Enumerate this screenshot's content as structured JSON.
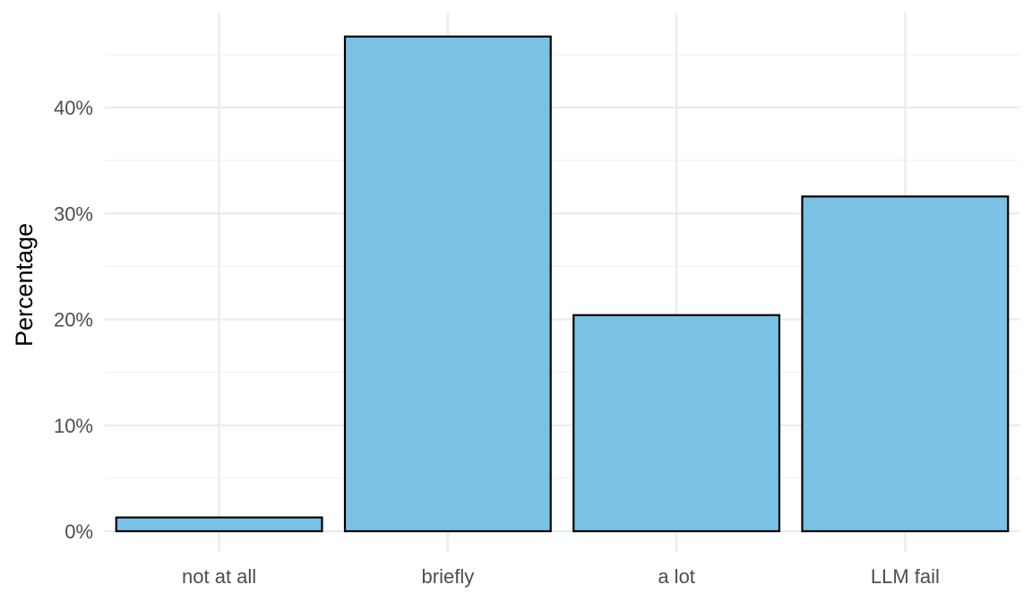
{
  "chart_data": {
    "type": "bar",
    "title": "",
    "xlabel": "",
    "ylabel": "Percentage",
    "categories": [
      "not at all",
      "briefly",
      "a lot",
      "LLM fail"
    ],
    "values": [
      1.3,
      46.7,
      20.4,
      31.6
    ],
    "value_unit": "%",
    "ylim": [
      0,
      48.5
    ],
    "y_ticks": [
      0,
      10,
      20,
      30,
      40
    ],
    "y_tick_labels": [
      "0%",
      "10%",
      "20%",
      "30%",
      "40%"
    ],
    "grid": true,
    "legend": "none",
    "colors": {
      "bar_fill": "#7AC2E5",
      "bar_stroke": "#000000",
      "grid_major": "#EBEBEB",
      "grid_minor": "#F2F2F2",
      "tick_text": "#4D4D4D",
      "axis_title": "#000000"
    }
  }
}
